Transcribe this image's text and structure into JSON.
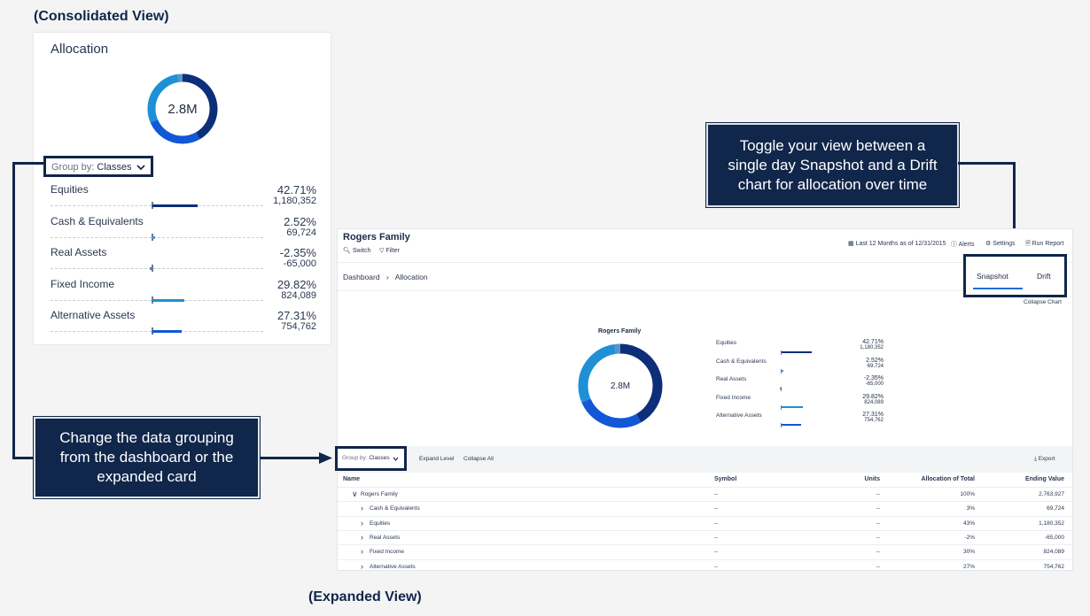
{
  "labels": {
    "consolidated": "(Consolidated View)",
    "expanded": "(Expanded View)"
  },
  "card": {
    "title": "Allocation",
    "total": "2.8M",
    "group_by_label": "Group by:",
    "group_by_value": "Classes",
    "rows": [
      {
        "label": "Equities",
        "percent": "42.71%",
        "value": "1,180,352",
        "share": 0.4271
      },
      {
        "label": "Cash & Equivalents",
        "percent": "2.52%",
        "value": "69,724",
        "share": 0.0252
      },
      {
        "label": "Real Assets",
        "percent": "-2.35%",
        "value": "-65,000",
        "share": -0.0235
      },
      {
        "label": "Fixed Income",
        "percent": "29.82%",
        "value": "824,089",
        "share": 0.2982
      },
      {
        "label": "Alternative Assets",
        "percent": "27.31%",
        "value": "754,762",
        "share": 0.2731
      }
    ]
  },
  "callouts": {
    "toggle": "Toggle your view between a single day Snapshot and a Drift chart for allocation over time",
    "grouping": "Change the data grouping from the dashboard or the expanded card"
  },
  "expanded": {
    "title": "Rogers Family",
    "switch": "Switch",
    "filter": "Filter",
    "date_range": "Last 12 Months as of 12/31/2015",
    "alerts": "Alerts",
    "settings": "Settings",
    "run_report": "Run Report",
    "breadcrumb_root": "Dashboard",
    "breadcrumb_current": "Allocation",
    "tab_snapshot": "Snapshot",
    "tab_drift": "Drift",
    "collapse_chart": "Collapse Chart",
    "chart_title": "Rogers Family",
    "total": "2.8M",
    "group_by_label": "Group by:",
    "group_by_value": "Classes",
    "expand_level": "Expand Level",
    "collapse_all": "Collapse All",
    "export": "Export",
    "columns": [
      "Name",
      "Symbol",
      "Units",
      "Allocation of Total",
      "Ending Value"
    ],
    "table_rows": [
      {
        "name": "Rogers Family",
        "symbol": "--",
        "units": "--",
        "allocation": "100%",
        "ending": "2,763,927"
      },
      {
        "name": "Cash & Equivalents",
        "symbol": "--",
        "units": "--",
        "allocation": "3%",
        "ending": "69,724"
      },
      {
        "name": "Equities",
        "symbol": "--",
        "units": "--",
        "allocation": "43%",
        "ending": "1,180,352"
      },
      {
        "name": "Real Assets",
        "symbol": "--",
        "units": "--",
        "allocation": "-2%",
        "ending": "-65,000"
      },
      {
        "name": "Fixed Income",
        "symbol": "--",
        "units": "--",
        "allocation": "30%",
        "ending": "824,089"
      },
      {
        "name": "Alternative Assets",
        "symbol": "--",
        "units": "--",
        "allocation": "27%",
        "ending": "754,762"
      }
    ]
  },
  "colors": {
    "navy": "#10264a",
    "equities": "#0d2f7a",
    "fixed_income": "#1f8fd6",
    "alternative": "#1257d6",
    "cash": "#5a93c9",
    "real_assets": "#6b7a90"
  }
}
